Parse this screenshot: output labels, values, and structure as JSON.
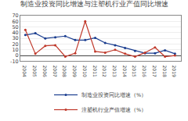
{
  "chart_data": {
    "type": "line",
    "title": "制造业投资同比增速与注塑机行业产值同比增速",
    "x": [
      2004,
      2005,
      2006,
      2007,
      2008,
      2009,
      2010,
      2011,
      2012,
      2013,
      2014,
      2015,
      2016,
      2017,
      2018,
      2019
    ],
    "series": [
      {
        "name": "制造业投资同比增速（%）",
        "color": "#1a3d8f",
        "marker": "circle",
        "values": [
          36,
          39,
          30,
          32,
          34,
          27,
          27,
          31,
          22,
          18,
          13,
          8,
          4,
          4,
          9,
          3
        ]
      },
      {
        "name": "注塑机行业产值增速（%）",
        "color": "#c0392b",
        "marker": "circle",
        "values": [
          45,
          3,
          17,
          18,
          -2,
          4,
          60,
          7,
          5,
          10,
          3,
          -2,
          5,
          14,
          -2,
          0
        ]
      }
    ],
    "xlim": [
      2003.5,
      2019.6
    ],
    "xticks": [
      2004,
      2005,
      2006,
      2007,
      2008,
      2009,
      2010,
      2011,
      2012,
      2013,
      2014,
      2015,
      2016,
      2017,
      2018,
      2019
    ],
    "ylim": [
      -10,
      70
    ],
    "yticks": [
      -10,
      0,
      10,
      20,
      30,
      40,
      50,
      60,
      70
    ],
    "grid": true,
    "legend": "bottom"
  }
}
